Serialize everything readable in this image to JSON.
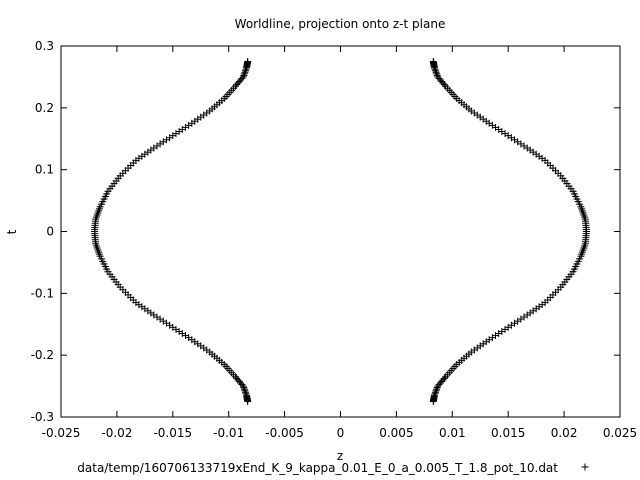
{
  "chart_data": {
    "type": "scatter",
    "title": "Worldline, projection onto z-t plane",
    "xlabel": "z",
    "ylabel": "t",
    "xlim": [
      -0.025,
      0.025
    ],
    "ylim": [
      -0.3,
      0.3
    ],
    "xticks": [
      -0.025,
      -0.02,
      -0.015,
      -0.01,
      -0.005,
      0,
      0.005,
      0.01,
      0.015,
      0.02,
      0.025
    ],
    "xtick_labels": [
      "-0.025",
      "-0.02",
      "-0.015",
      "-0.01",
      "-0.005",
      "0",
      "0.005",
      "0.01",
      "0.015",
      "0.02",
      "0.025"
    ],
    "yticks": [
      -0.3,
      -0.2,
      -0.1,
      0,
      0.1,
      0.2,
      0.3
    ],
    "ytick_labels": [
      "-0.3",
      "-0.2",
      "-0.1",
      "0",
      "0.1",
      "0.2",
      "0.3"
    ],
    "grid": false,
    "legend_position": "bottom",
    "series": [
      {
        "name": "data/temp/160706133719xEnd_K_9_kappa_0.01_E_0_a_0.005_T_1.8_pot_10.dat",
        "marker": "+",
        "color": "#000000",
        "x": [
          -0.0083,
          -0.0084,
          -0.0087,
          -0.0094,
          -0.0104,
          -0.0117,
          -0.0133,
          -0.015,
          -0.0167,
          -0.0183,
          -0.0197,
          -0.0208,
          -0.0215,
          -0.0219,
          -0.022,
          -0.0219,
          -0.0215,
          -0.0208,
          -0.0197,
          -0.0183,
          -0.0167,
          -0.015,
          -0.0133,
          -0.0117,
          -0.0104,
          -0.0094,
          -0.0087,
          -0.0084,
          -0.0083,
          0.0083,
          0.0084,
          0.0087,
          0.0094,
          0.0104,
          0.0117,
          0.0133,
          0.015,
          0.0167,
          0.0183,
          0.0197,
          0.0208,
          0.0215,
          0.0219,
          0.022,
          0.0219,
          0.0215,
          0.0208,
          0.0197,
          0.0183,
          0.0167,
          0.015,
          0.0133,
          0.0117,
          0.0104,
          0.0094,
          0.0087,
          0.0084,
          0.0083
        ],
        "y": [
          0.275,
          0.265,
          0.25,
          0.235,
          0.215,
          0.195,
          0.175,
          0.155,
          0.135,
          0.115,
          0.09,
          0.065,
          0.04,
          0.02,
          0.0,
          -0.02,
          -0.04,
          -0.065,
          -0.09,
          -0.115,
          -0.135,
          -0.155,
          -0.175,
          -0.195,
          -0.215,
          -0.235,
          -0.25,
          -0.265,
          -0.275,
          0.275,
          0.265,
          0.25,
          0.235,
          0.215,
          0.195,
          0.175,
          0.155,
          0.135,
          0.115,
          0.09,
          0.065,
          0.04,
          0.02,
          0.0,
          -0.02,
          -0.04,
          -0.065,
          -0.09,
          -0.115,
          -0.135,
          -0.155,
          -0.175,
          -0.195,
          -0.215,
          -0.235,
          -0.25,
          -0.265,
          -0.275
        ]
      }
    ]
  }
}
